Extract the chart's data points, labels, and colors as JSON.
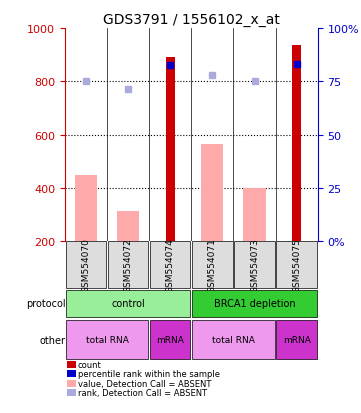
{
  "title": "GDS3791 / 1556102_x_at",
  "samples": [
    "GSM554070",
    "GSM554072",
    "GSM554074",
    "GSM554071",
    "GSM554073",
    "GSM554075"
  ],
  "bar_values": [
    null,
    null,
    893,
    null,
    null,
    938
  ],
  "bar_colors_dark": [
    "#cc0000",
    "#cc0000",
    "#cc0000",
    "#cc0000",
    "#cc0000",
    "#cc0000"
  ],
  "absent_values": [
    450,
    315,
    null,
    565,
    400,
    null
  ],
  "absent_color": "#ffaaaa",
  "rank_values": [
    800,
    770,
    null,
    823,
    800,
    null
  ],
  "rank_color_absent": "#aaaadd",
  "percentile_dark": [
    null,
    null,
    860,
    null,
    null,
    865
  ],
  "percentile_color": "#0000cc",
  "ylim": [
    200,
    1000
  ],
  "y_ticks_left": [
    200,
    400,
    600,
    800,
    1000
  ],
  "y_ticks_right": [
    0,
    25,
    50,
    75,
    100
  ],
  "y_right_values": [
    200,
    400,
    600,
    800,
    1000
  ],
  "protocol_groups": [
    {
      "label": "control",
      "start": 0,
      "end": 3,
      "color": "#99ee99"
    },
    {
      "label": "BRCA1 depletion",
      "start": 3,
      "end": 6,
      "color": "#33cc33"
    }
  ],
  "other_groups": [
    {
      "label": "total RNA",
      "start": 0,
      "end": 2,
      "color": "#ee99ee"
    },
    {
      "label": "mRNA",
      "start": 2,
      "end": 3,
      "color": "#cc33cc"
    },
    {
      "label": "total RNA",
      "start": 3,
      "end": 5,
      "color": "#ee99ee"
    },
    {
      "label": "mRNA",
      "start": 5,
      "end": 6,
      "color": "#cc33cc"
    }
  ],
  "legend_items": [
    {
      "label": "count",
      "color": "#cc0000",
      "style": "square"
    },
    {
      "label": "percentile rank within the sample",
      "color": "#0000cc",
      "style": "square"
    },
    {
      "label": "value, Detection Call = ABSENT",
      "color": "#ffaaaa",
      "style": "square"
    },
    {
      "label": "rank, Detection Call = ABSENT",
      "color": "#aaaadd",
      "style": "square"
    }
  ],
  "left_axis_color": "#cc0000",
  "right_axis_color": "#0000cc",
  "bar_width": 0.35,
  "x_positions": [
    0,
    1,
    2,
    3,
    4,
    5
  ]
}
